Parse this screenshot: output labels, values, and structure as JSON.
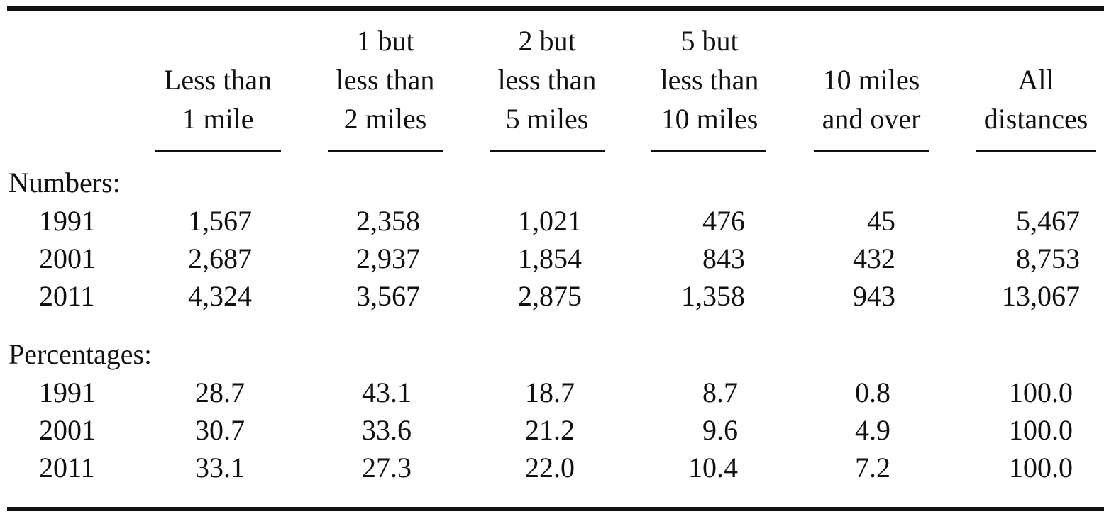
{
  "table": {
    "columns": [
      [
        "Less than",
        "1 mile"
      ],
      [
        "1 but",
        "less than",
        "2 miles"
      ],
      [
        "2 but",
        "less than",
        "5 miles"
      ],
      [
        "5 but",
        "less than",
        "10 miles"
      ],
      [
        "10 miles",
        "and over"
      ],
      [
        "All",
        "distances"
      ]
    ],
    "sections": [
      {
        "label": "Numbers:",
        "rows": [
          {
            "year": "1991",
            "values": [
              "1,567",
              "2,358",
              "1,021",
              "476",
              "45",
              "5,467"
            ]
          },
          {
            "year": "2001",
            "values": [
              "2,687",
              "2,937",
              "1,854",
              "843",
              "432",
              "8,753"
            ]
          },
          {
            "year": "2011",
            "values": [
              "4,324",
              "3,567",
              "2,875",
              "1,358",
              "943",
              "13,067"
            ]
          }
        ]
      },
      {
        "label": "Percentages:",
        "rows": [
          {
            "year": "1991",
            "values": [
              "28.7",
              "43.1",
              "18.7",
              "8.7",
              "0.8",
              "100.0"
            ]
          },
          {
            "year": "2001",
            "values": [
              "30.7",
              "33.6",
              "21.2",
              "9.6",
              "4.9",
              "100.0"
            ]
          },
          {
            "year": "2011",
            "values": [
              "33.1",
              "27.3",
              "22.0",
              "10.4",
              "7.2",
              "100.0"
            ]
          }
        ]
      }
    ]
  }
}
